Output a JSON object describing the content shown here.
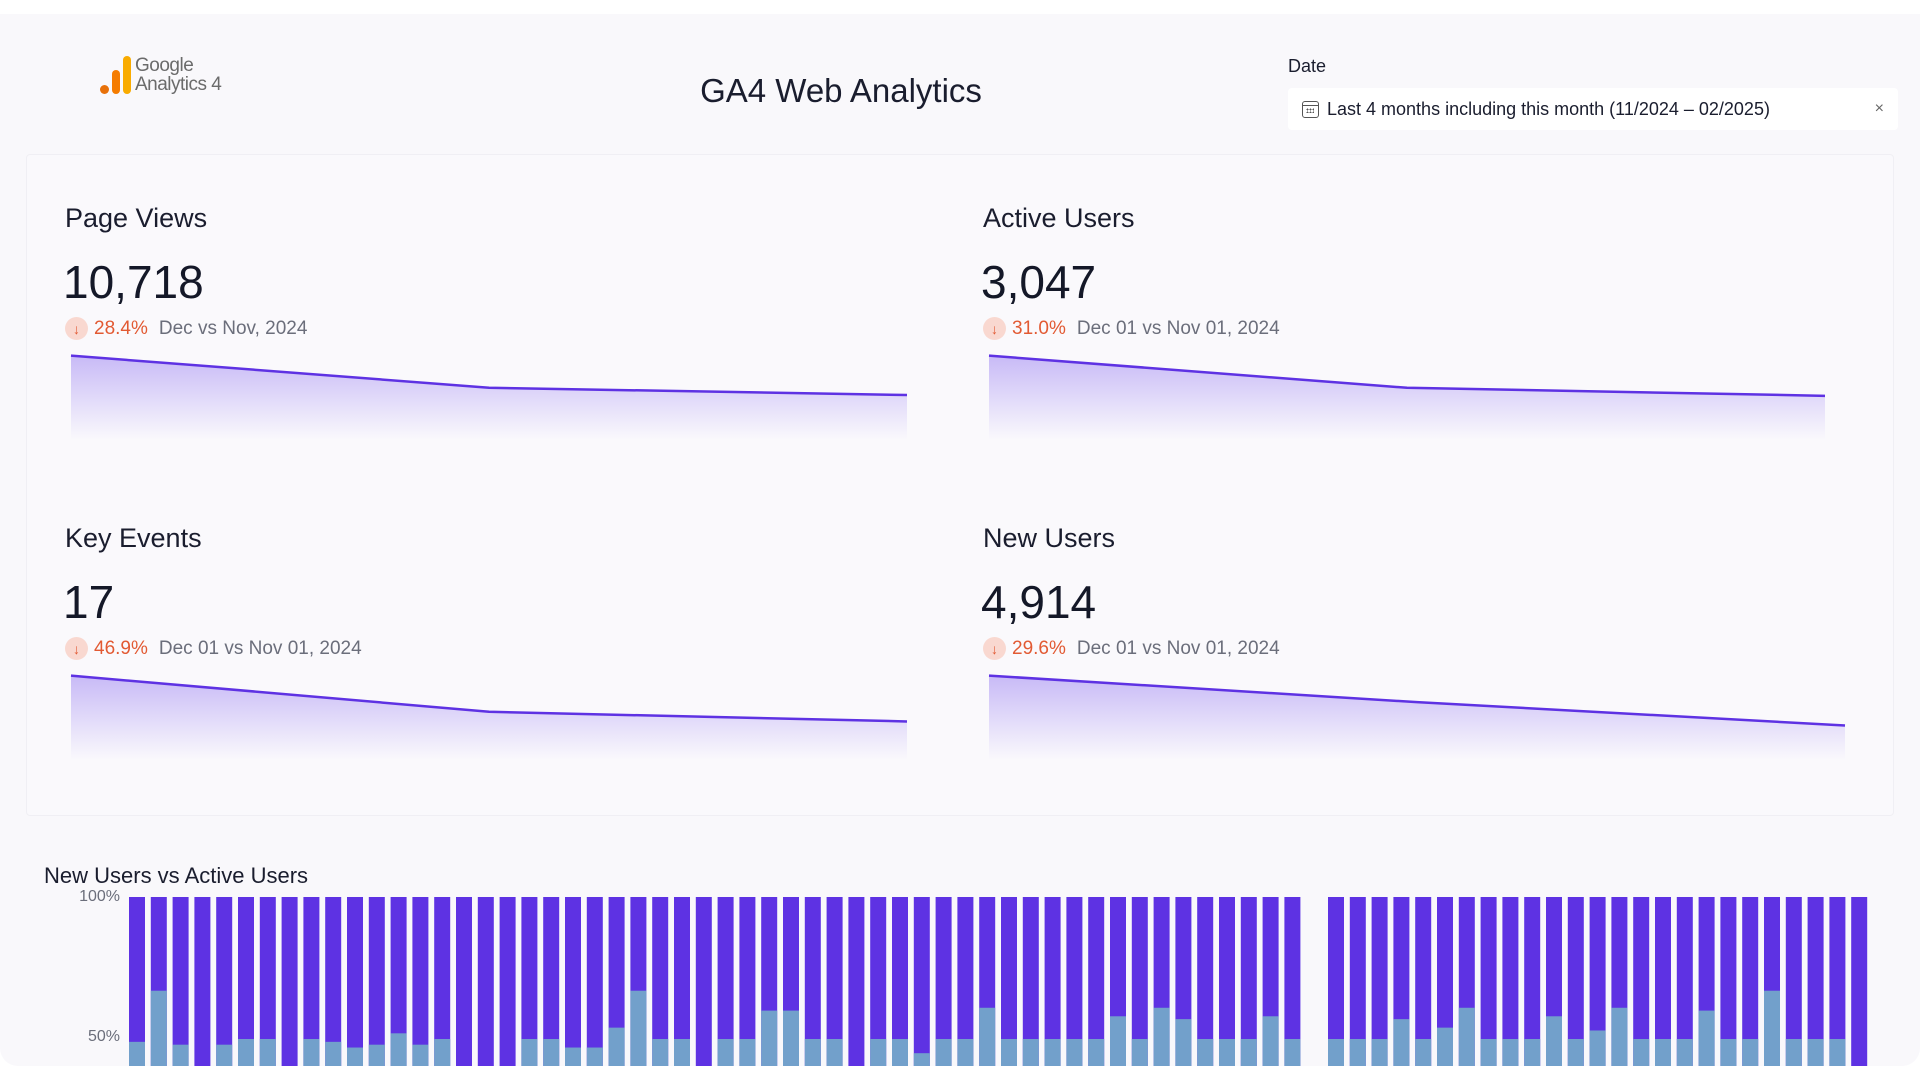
{
  "header": {
    "logo_line1": "Google",
    "logo_line2": "Analytics 4",
    "title": "GA4 Web Analytics",
    "date_filter": {
      "label": "Date",
      "value": "Last 4 months including this month (11/2024 – 02/2025)",
      "clear_label": "×"
    }
  },
  "colors": {
    "accent": "#5e32e3",
    "light_series": "#72a0cb",
    "negative": "#e25a33",
    "negative_bg": "#f9d8d0"
  },
  "scorecards": [
    {
      "name": "Page Views",
      "value": "10,718",
      "change": "28.4%",
      "direction": "down",
      "comparison": "Dec vs Nov, 2024",
      "trend": [
        100,
        60,
        51
      ]
    },
    {
      "name": "Active Users",
      "value": "3,047",
      "change": "31.0%",
      "direction": "down",
      "comparison": "Dec 01 vs Nov 01, 2024",
      "trend": [
        100,
        60,
        50
      ]
    },
    {
      "name": "Key Events",
      "value": "17",
      "change": "46.9%",
      "direction": "down",
      "comparison": "Dec 01 vs Nov 01, 2024",
      "trend": [
        100,
        55,
        43
      ]
    },
    {
      "name": "New Users",
      "value": "4,914",
      "change": "29.6%",
      "direction": "down",
      "comparison": "Dec 01 vs Nov 01, 2024",
      "trend": [
        100,
        67,
        38
      ]
    }
  ],
  "chart_data": {
    "type": "bar",
    "stacked": "percent",
    "title": "New Users vs Active Users",
    "ylabel": "",
    "yticks": [
      "100%",
      "50%"
    ],
    "ylim": [
      0,
      100
    ],
    "series": [
      {
        "name": "New Users",
        "color": "#72a0cb",
        "values": [
          49,
          67,
          48,
          0,
          48,
          50,
          50,
          0,
          50,
          49,
          47,
          48,
          52,
          48,
          50,
          0,
          0,
          0,
          50,
          50,
          47,
          47,
          54,
          67,
          50,
          50,
          0,
          50,
          50,
          60,
          60,
          50,
          50,
          0,
          50,
          50,
          45,
          50,
          50,
          61,
          50,
          50,
          50,
          50,
          50,
          58,
          50,
          61,
          57,
          50,
          50,
          50,
          58,
          50,
          null,
          50,
          50,
          50,
          57,
          50,
          54,
          61,
          50,
          50,
          50,
          58,
          50,
          53,
          61,
          50,
          50,
          50,
          60,
          50,
          50,
          67,
          50,
          50,
          50,
          0
        ]
      },
      {
        "name": "Active Users",
        "color": "#5e32e3",
        "values": "remainder to 100%"
      }
    ]
  }
}
